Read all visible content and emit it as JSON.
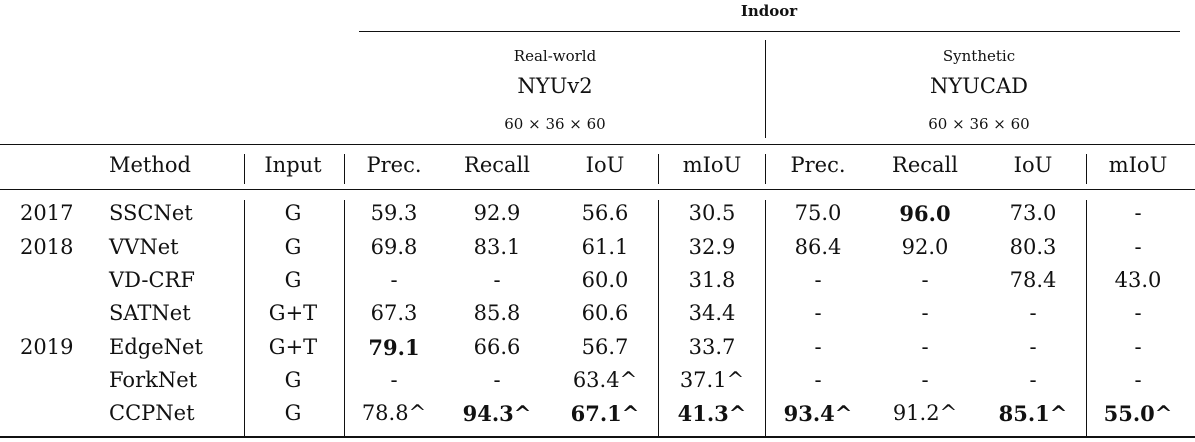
{
  "header": {
    "group": "Indoor",
    "datasets": [
      {
        "kind": "Real-world",
        "name": "NYUv2",
        "resolution": "60 × 36 × 60"
      },
      {
        "kind": "Synthetic",
        "name": "NYUCAD",
        "resolution": "60 × 36 × 60"
      }
    ],
    "columns": [
      "Method",
      "Input",
      "Prec.",
      "Recall",
      "IoU",
      "mIoU",
      "Prec.",
      "Recall",
      "IoU",
      "mIoU"
    ]
  },
  "rows": [
    {
      "year": "2017",
      "method": "SSCNet",
      "input": "G",
      "values": [
        "59.3",
        "92.9",
        "56.6",
        "30.5",
        "75.0",
        "96.0",
        "73.0",
        "-"
      ],
      "bold": [
        5
      ]
    },
    {
      "year": "2018",
      "method": "VVNet",
      "input": "G",
      "values": [
        "69.8",
        "83.1",
        "61.1",
        "32.9",
        "86.4",
        "92.0",
        "80.3",
        "-"
      ],
      "bold": []
    },
    {
      "year": "",
      "method": "VD-CRF",
      "input": "G",
      "values": [
        "-",
        "-",
        "60.0",
        "31.8",
        "-",
        "-",
        "78.4",
        "43.0"
      ],
      "bold": []
    },
    {
      "year": "",
      "method": "SATNet",
      "input": "G+T",
      "values": [
        "67.3",
        "85.8",
        "60.6",
        "34.4",
        "-",
        "-",
        "-",
        "-"
      ],
      "bold": []
    },
    {
      "year": "2019",
      "method": "EdgeNet",
      "input": "G+T",
      "values": [
        "79.1",
        "66.6",
        "56.7",
        "33.7",
        "-",
        "-",
        "-",
        "-"
      ],
      "bold": [
        0
      ]
    },
    {
      "year": "",
      "method": "ForkNet",
      "input": "G",
      "values": [
        "-",
        "-",
        "63.4^",
        "37.1^",
        "-",
        "-",
        "-",
        "-"
      ],
      "bold": []
    },
    {
      "year": "",
      "method": "CCPNet",
      "input": "G",
      "values": [
        "78.8^",
        "94.3^",
        "67.1^",
        "41.3^",
        "93.4^",
        "91.2^",
        "85.1^",
        "55.0^"
      ],
      "bold": [
        1,
        2,
        3,
        4,
        6,
        7
      ]
    }
  ]
}
